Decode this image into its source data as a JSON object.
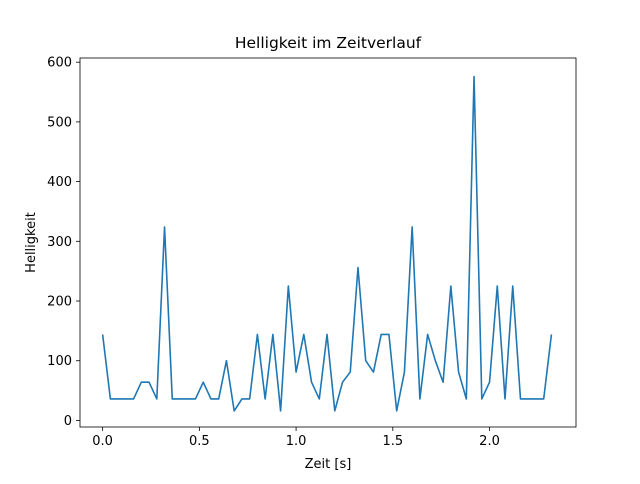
{
  "chart_data": {
    "type": "line",
    "title": "Helligkeit im Zeitverlauf",
    "xlabel": "Zeit [s]",
    "ylabel": "Helligkeit",
    "xlim": [
      -0.117,
      2.447
    ],
    "ylim": [
      -11,
      607
    ],
    "xticks": [
      0.0,
      0.5,
      1.0,
      1.5,
      2.0
    ],
    "xtick_labels": [
      "0.0",
      "0.5",
      "1.0",
      "1.5",
      "2.0"
    ],
    "yticks": [
      0,
      100,
      200,
      300,
      400,
      500,
      600
    ],
    "ytick_labels": [
      "0",
      "100",
      "200",
      "300",
      "400",
      "500",
      "600"
    ],
    "grid": false,
    "color": "#1f77b4",
    "series": [
      {
        "x": [
          0.0,
          0.04,
          0.08,
          0.12,
          0.16,
          0.2,
          0.24,
          0.28,
          0.32,
          0.36,
          0.4,
          0.44,
          0.48,
          0.52,
          0.56,
          0.6,
          0.64,
          0.68,
          0.72,
          0.76,
          0.8,
          0.84,
          0.88,
          0.92,
          0.96,
          1.0,
          1.04,
          1.08,
          1.12,
          1.16,
          1.2,
          1.24,
          1.28,
          1.32,
          1.36,
          1.4,
          1.44,
          1.48,
          1.52,
          1.56,
          1.6,
          1.64,
          1.68,
          1.72,
          1.76,
          1.8,
          1.84,
          1.88,
          1.92,
          1.96,
          2.0,
          2.04,
          2.08,
          2.12,
          2.16,
          2.2,
          2.24,
          2.28,
          2.32
        ],
        "y": [
          144,
          36,
          36,
          36,
          36,
          64,
          64,
          36,
          324,
          36,
          36,
          36,
          36,
          64,
          36,
          36,
          100,
          16,
          36,
          36,
          144,
          36,
          144,
          16,
          225,
          81,
          144,
          64,
          36,
          144,
          16,
          64,
          81,
          256,
          100,
          81,
          144,
          144,
          16,
          81,
          324,
          36,
          144,
          100,
          64,
          225,
          81,
          36,
          576,
          36,
          64,
          225,
          36,
          225,
          36,
          36,
          36,
          36,
          144
        ]
      }
    ]
  }
}
